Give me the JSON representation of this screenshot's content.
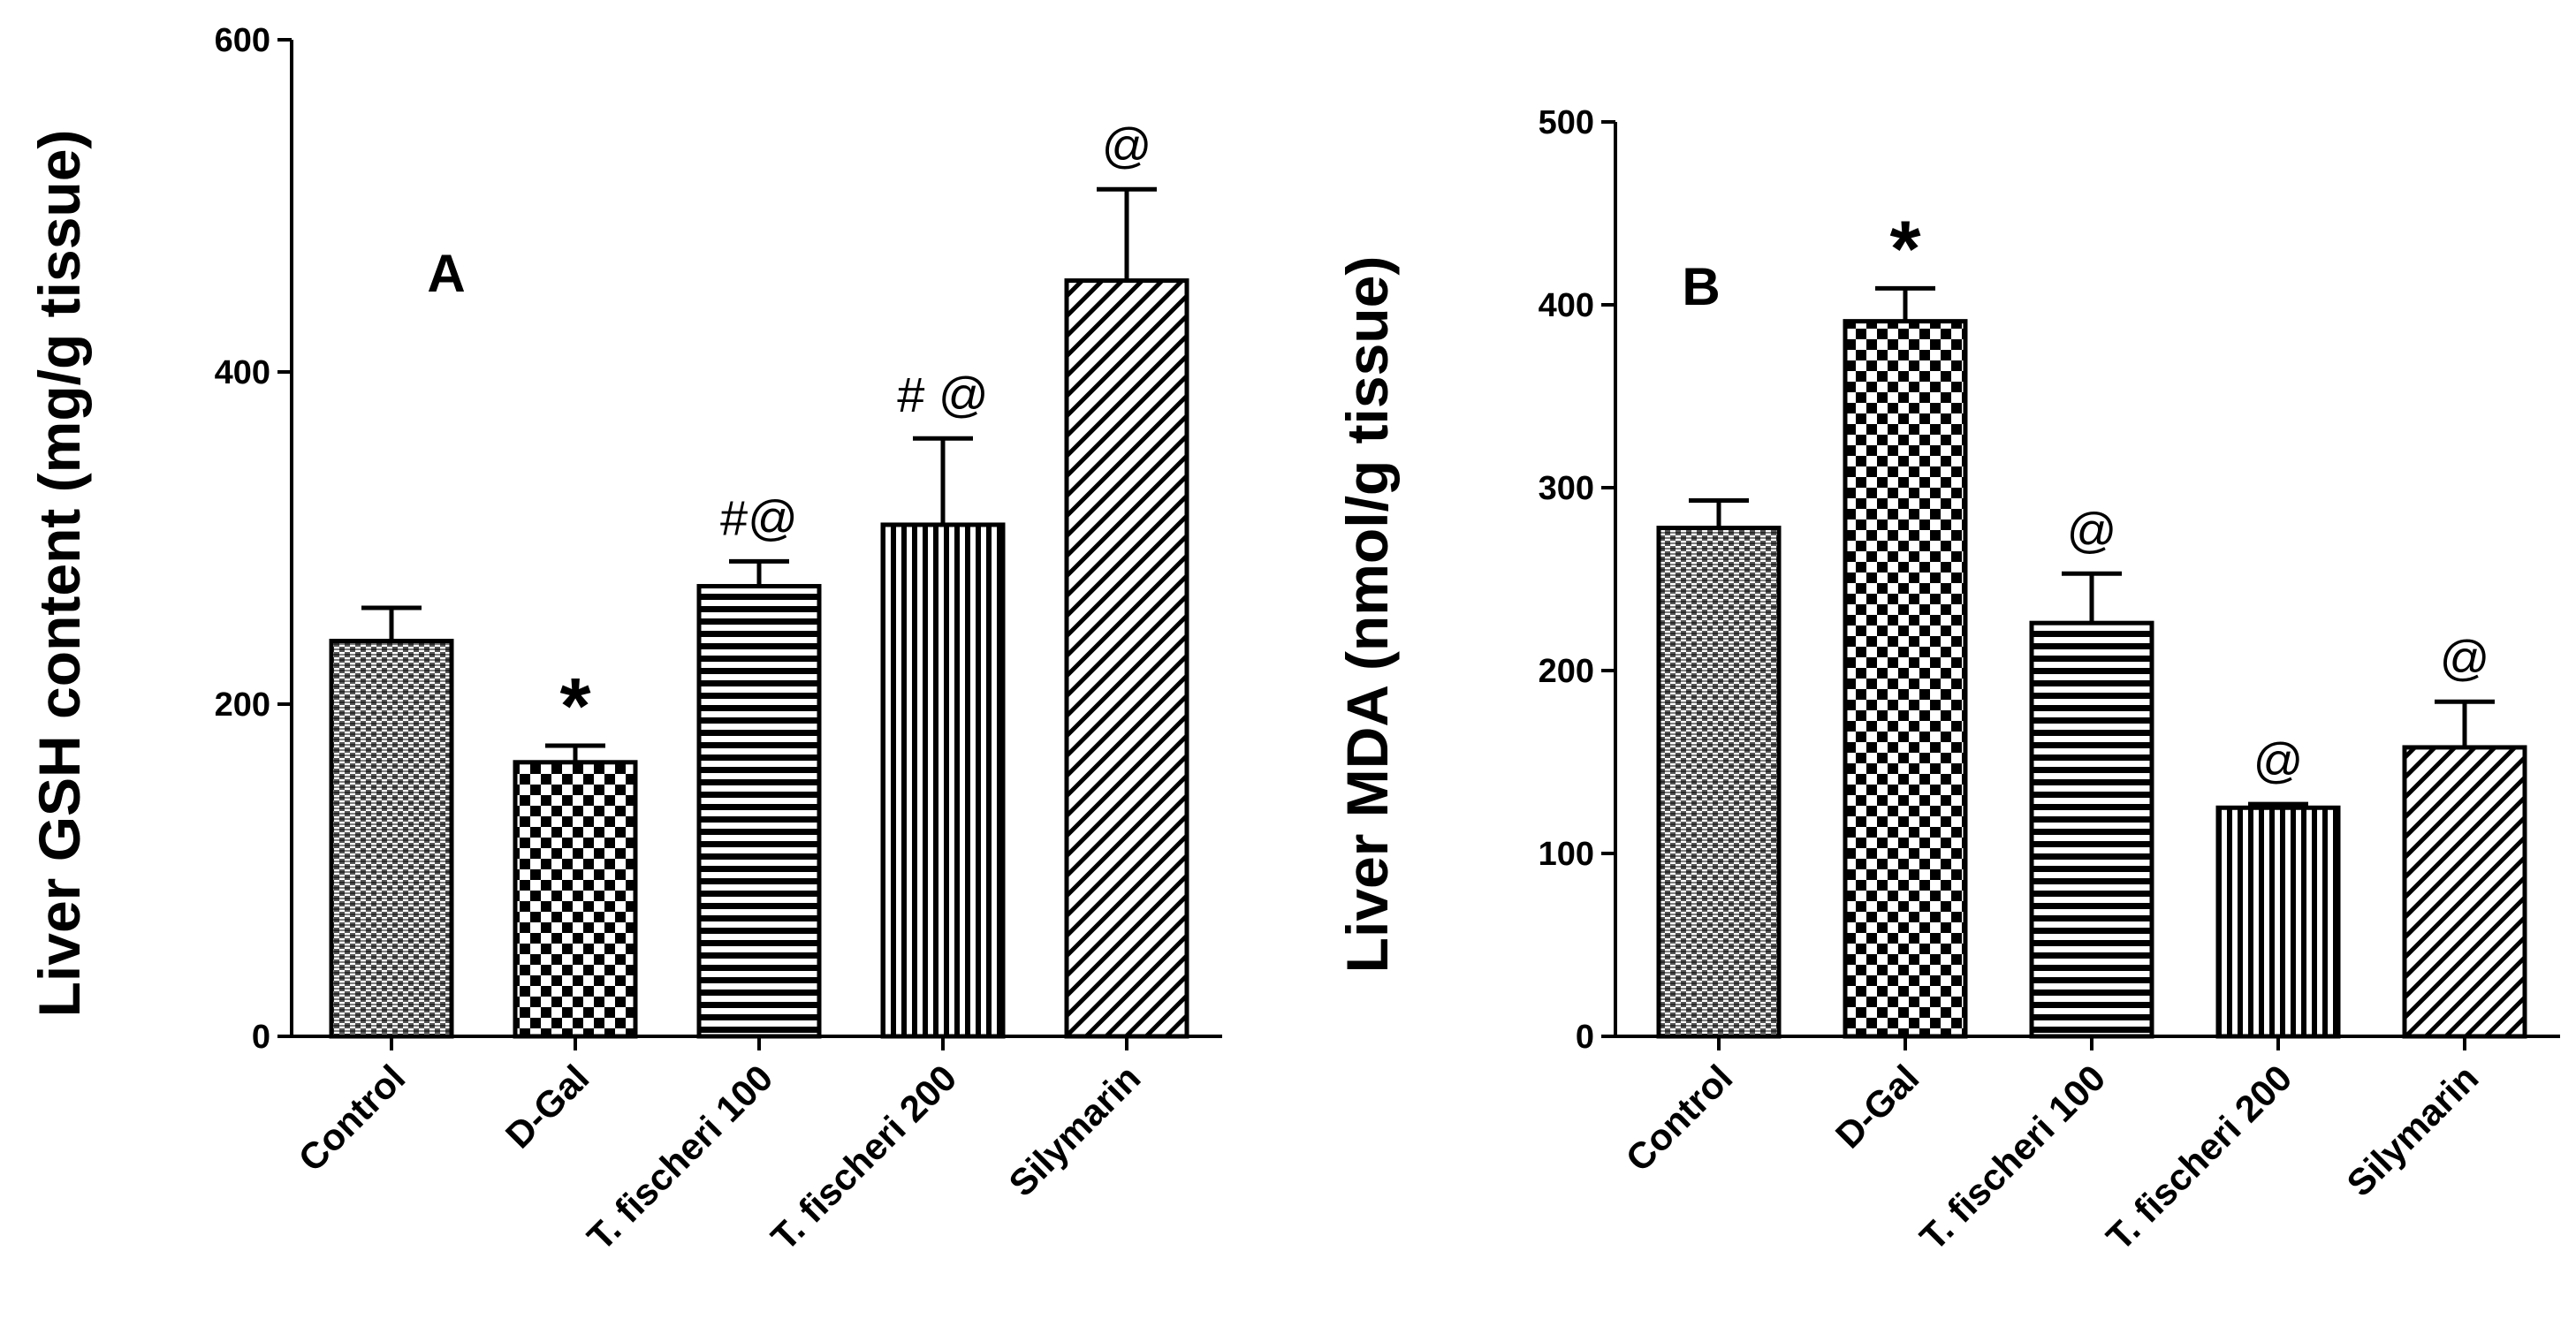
{
  "chart_data": [
    {
      "type": "bar",
      "panel_label": "A",
      "title": "",
      "xlabel": "",
      "ylabel": "Liver GSH content (mg/g tissue)",
      "ylim": [
        0,
        600
      ],
      "yticks": [
        0,
        200,
        400,
        600
      ],
      "categories": [
        "Control",
        "D-Gal",
        "T. fischeri 100",
        "T. fischeri 200",
        "Silymarin"
      ],
      "values": [
        238,
        165,
        271,
        308,
        455
      ],
      "errors": [
        20,
        10,
        15,
        52,
        55
      ],
      "patterns": [
        "crosshatch-fine",
        "checker",
        "horizontal",
        "vertical",
        "diagonal"
      ],
      "annotations": [
        "",
        "*",
        "#@",
        "# @",
        "@"
      ]
    },
    {
      "type": "bar",
      "panel_label": "B",
      "title": "",
      "xlabel": "",
      "ylabel": "Liver MDA (nmol/g tissue)",
      "ylim": [
        0,
        500
      ],
      "yticks": [
        0,
        100,
        200,
        300,
        400,
        500
      ],
      "categories": [
        "Control",
        "D-Gal",
        "T. fischeri 100",
        "T. fischeri 200",
        "Silymarin"
      ],
      "values": [
        278,
        391,
        226,
        125,
        158
      ],
      "errors": [
        15,
        18,
        27,
        2,
        25
      ],
      "patterns": [
        "crosshatch-fine",
        "checker",
        "horizontal",
        "vertical",
        "diagonal"
      ],
      "annotations": [
        "",
        "*",
        "@",
        "@",
        "@"
      ]
    }
  ]
}
